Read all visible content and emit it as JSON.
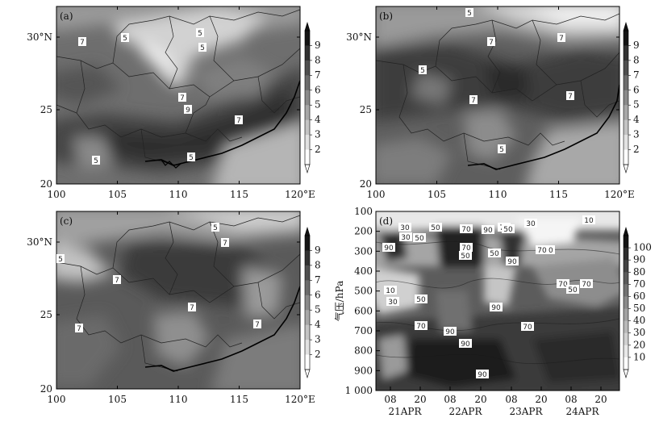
{
  "chart_data": [
    {
      "type": "heatmap",
      "panel_label": "(a)",
      "x_ticks": [
        "100",
        "105",
        "110",
        "115",
        "120°E"
      ],
      "y_ticks": [
        "30°N",
        "25",
        "20"
      ],
      "colorbar_ticks": [
        "2",
        "3",
        "4",
        "5",
        "6",
        "7",
        "8",
        "9"
      ],
      "contour_labels": [
        "7",
        "5",
        "5",
        "5",
        "7",
        "9",
        "7",
        "5",
        "5"
      ]
    },
    {
      "type": "heatmap",
      "panel_label": "(b)",
      "x_ticks": [
        "100",
        "105",
        "110",
        "115",
        "120°E"
      ],
      "y_ticks": [
        "30°N",
        "25",
        "20"
      ],
      "colorbar_ticks": [
        "2",
        "3",
        "4",
        "5",
        "6",
        "7",
        "8",
        "9"
      ],
      "contour_labels": [
        "5",
        "7",
        "5",
        "7",
        "7",
        "5",
        "7"
      ]
    },
    {
      "type": "heatmap",
      "panel_label": "(c)",
      "x_ticks": [
        "100",
        "105",
        "110",
        "115",
        "120°E"
      ],
      "y_ticks": [
        "30°N",
        "25",
        "20"
      ],
      "colorbar_ticks": [
        "2",
        "3",
        "4",
        "5",
        "6",
        "7",
        "8",
        "9"
      ],
      "contour_labels": [
        "5",
        "7",
        "5",
        "7",
        "7",
        "7",
        "7"
      ]
    },
    {
      "type": "heatmap",
      "panel_label": "(d)",
      "ylabel": "气压/hPa",
      "y_ticks": [
        "100",
        "200",
        "300",
        "400",
        "500",
        "600",
        "700",
        "800",
        "900",
        "1 000"
      ],
      "x_ticks": [
        "08",
        "20",
        "08",
        "20",
        "08",
        "20",
        "08",
        "20"
      ],
      "date_labels": [
        "21APR",
        "22APR",
        "23APR",
        "24APR"
      ],
      "colorbar_ticks": [
        "10",
        "20",
        "30",
        "40",
        "50",
        "60",
        "70",
        "80",
        "90",
        "100"
      ],
      "contour_labels": [
        "30",
        "50",
        "70",
        "90",
        "70",
        "50",
        "30",
        "10",
        "30",
        "50",
        "90",
        "50",
        "70",
        "90",
        "30",
        "50",
        "70",
        "10",
        "30",
        "50",
        "90",
        "70",
        "50",
        "70",
        "70",
        "90",
        "90",
        "70",
        "90"
      ]
    }
  ]
}
